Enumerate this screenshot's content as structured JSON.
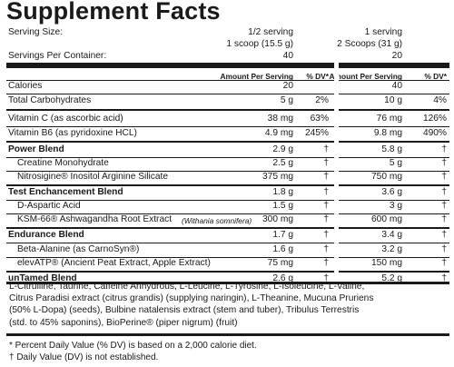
{
  "title": "Supplement Facts",
  "serving_size_label": "Serving Size:",
  "servings_per_container_label": "Servings Per Container:",
  "col1": {
    "serving_line1": "1/2 serving",
    "serving_line2": "1 scoop (15.5 g)",
    "servings": "40"
  },
  "col2": {
    "serving_line1": "1 serving",
    "serving_line2": "2 Scoops (31 g)",
    "servings": "20"
  },
  "headers": {
    "amount": "Amount Per Serving",
    "dv": "% DV*"
  },
  "rows": [
    {
      "label": "Calories",
      "a1": "20",
      "d1": "",
      "a2": "40",
      "d2": ""
    },
    {
      "label": "Total Carbohydrates",
      "a1": "5 g",
      "d1": "2%",
      "a2": "10 g",
      "d2": "4%"
    },
    {
      "label": "Vitamin C (as ascorbic acid)",
      "a1": "38 mg",
      "d1": "63%",
      "a2": "76 mg",
      "d2": "126%"
    },
    {
      "label": "Vitamin B6 (as pyridoxine HCL)",
      "a1": "4.9 mg",
      "d1": "245%",
      "a2": "9.8 mg",
      "d2": "490%"
    },
    {
      "label": "Power Blend",
      "a1": "2.9 g",
      "d1": "†",
      "a2": "5.8 g",
      "d2": "†"
    },
    {
      "label": "Creatine Monohydrate",
      "a1": "2.5 g",
      "d1": "†",
      "a2": "5 g",
      "d2": "†"
    },
    {
      "label": "Nitrosigine® Inositol Arginine Silicate",
      "a1": "375 mg",
      "d1": "†",
      "a2": "750 mg",
      "d2": "†"
    },
    {
      "label": "Test Enchancement Blend",
      "a1": "1.8 g",
      "d1": "†",
      "a2": "3.6 g",
      "d2": "†"
    },
    {
      "label": "D-Aspartic Acid",
      "a1": "1.5 g",
      "d1": "†",
      "a2": "3 g",
      "d2": "†"
    },
    {
      "label": "KSM-66® Ashwagandha Root Extract",
      "note": "(Withania somnifera)",
      "a1": "300 mg",
      "d1": "†",
      "a2": "600 mg",
      "d2": "†"
    },
    {
      "label": "Endurance Blend",
      "a1": "1.7 g",
      "d1": "†",
      "a2": "3.4 g",
      "d2": "†"
    },
    {
      "label": "Beta-Alanine (as CarnoSyn®)",
      "a1": "1.6 g",
      "d1": "†",
      "a2": "3.2 g",
      "d2": "†"
    },
    {
      "label": "elevATP® (Ancient Peat Extract, Apple Extract)",
      "a1": "75 mg",
      "d1": "†",
      "a2": "150 mg",
      "d2": "†"
    },
    {
      "label": "unTamed Blend",
      "a1": "2.6 g",
      "d1": "†",
      "a2": "5.2 g",
      "d2": "†"
    }
  ],
  "ingredients": [
    "L-Citrulline, Taurine, Caffeine Anhydrous, L-Leucine, L-Tyrosine, L-Isoleucine, L-Valine,",
    "Citrus Paradisi extract (citrus grandis) (supplying naringin), L-Theanine, Mucuna Pruriens",
    "(50% L-Dopa) (seeds), Bulbine natalensis extract (stem and tuber), Tribulus Terrestris",
    "(std. to 45% saponins), BioPerine® (piper nigrum) (fruit)"
  ],
  "footnotes": [
    "* Percent Daily Value (% DV) is based on a 2,000 calorie diet.",
    "† Daily Value (DV) is not established."
  ]
}
